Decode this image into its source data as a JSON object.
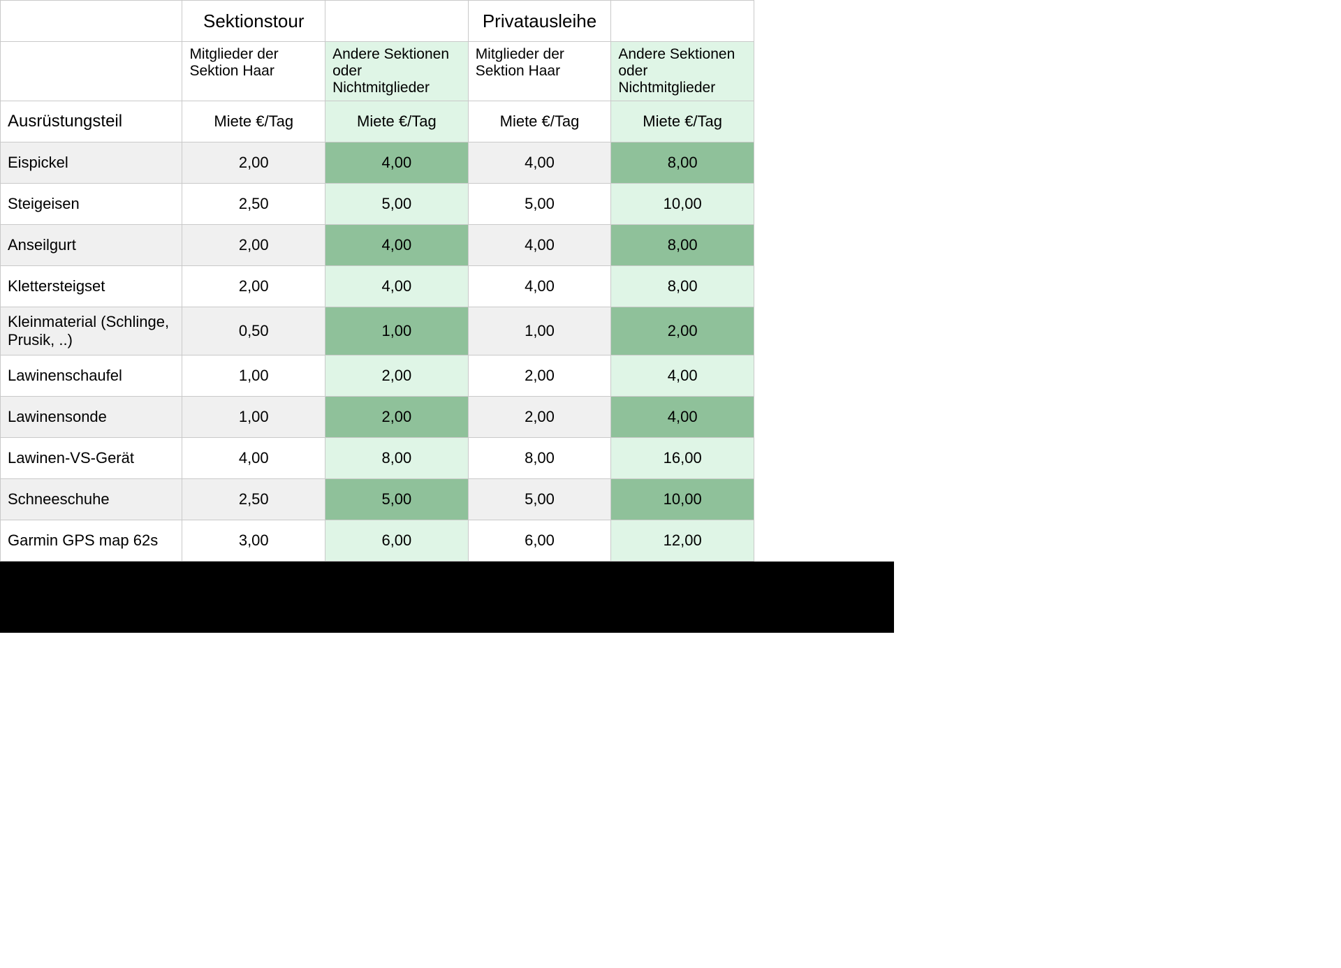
{
  "table": {
    "colors": {
      "green_light": "#dff5e6",
      "green_dark": "#8fc19a",
      "grey_light": "#f0f0f0",
      "white": "#ffffff",
      "border": "#c9c9c9",
      "black": "#000000"
    },
    "group_headers": {
      "blank": "",
      "sektionstour": "Sektionstour",
      "spacer": "",
      "privatausleihe": "Privatausleihe",
      "spacer2": ""
    },
    "sub_headers": {
      "blank": "",
      "members": "Mitglieder der Sektion Haar",
      "others": "Andere Sektionen oder Nichtmitglieder"
    },
    "col_labels": {
      "item": "Ausrüstungsteil",
      "rate": "Miete €/Tag"
    },
    "rows": [
      {
        "item": "Eispickel",
        "c1": "2,00",
        "c2": "4,00",
        "c3": "4,00",
        "c4": "8,00"
      },
      {
        "item": "Steigeisen",
        "c1": "2,50",
        "c2": "5,00",
        "c3": "5,00",
        "c4": "10,00"
      },
      {
        "item": "Anseilgurt",
        "c1": "2,00",
        "c2": "4,00",
        "c3": "4,00",
        "c4": "8,00"
      },
      {
        "item": "Klettersteigset",
        "c1": "2,00",
        "c2": "4,00",
        "c3": "4,00",
        "c4": "8,00"
      },
      {
        "item": "Kleinmaterial (Schlinge, Prusik, ..)",
        "c1": "0,50",
        "c2": "1,00",
        "c3": "1,00",
        "c4": "2,00"
      },
      {
        "item": "Lawinenschaufel",
        "c1": "1,00",
        "c2": "2,00",
        "c3": "2,00",
        "c4": "4,00"
      },
      {
        "item": "Lawinensonde",
        "c1": "1,00",
        "c2": "2,00",
        "c3": "2,00",
        "c4": "4,00"
      },
      {
        "item": "Lawinen-VS-Gerät",
        "c1": "4,00",
        "c2": "8,00",
        "c3": "8,00",
        "c4": "16,00"
      },
      {
        "item": "Schneeschuhe",
        "c1": "2,50",
        "c2": "5,00",
        "c3": "5,00",
        "c4": "10,00"
      },
      {
        "item": "Garmin GPS map 62s",
        "c1": "3,00",
        "c2": "6,00",
        "c3": "6,00",
        "c4": "12,00"
      }
    ]
  }
}
